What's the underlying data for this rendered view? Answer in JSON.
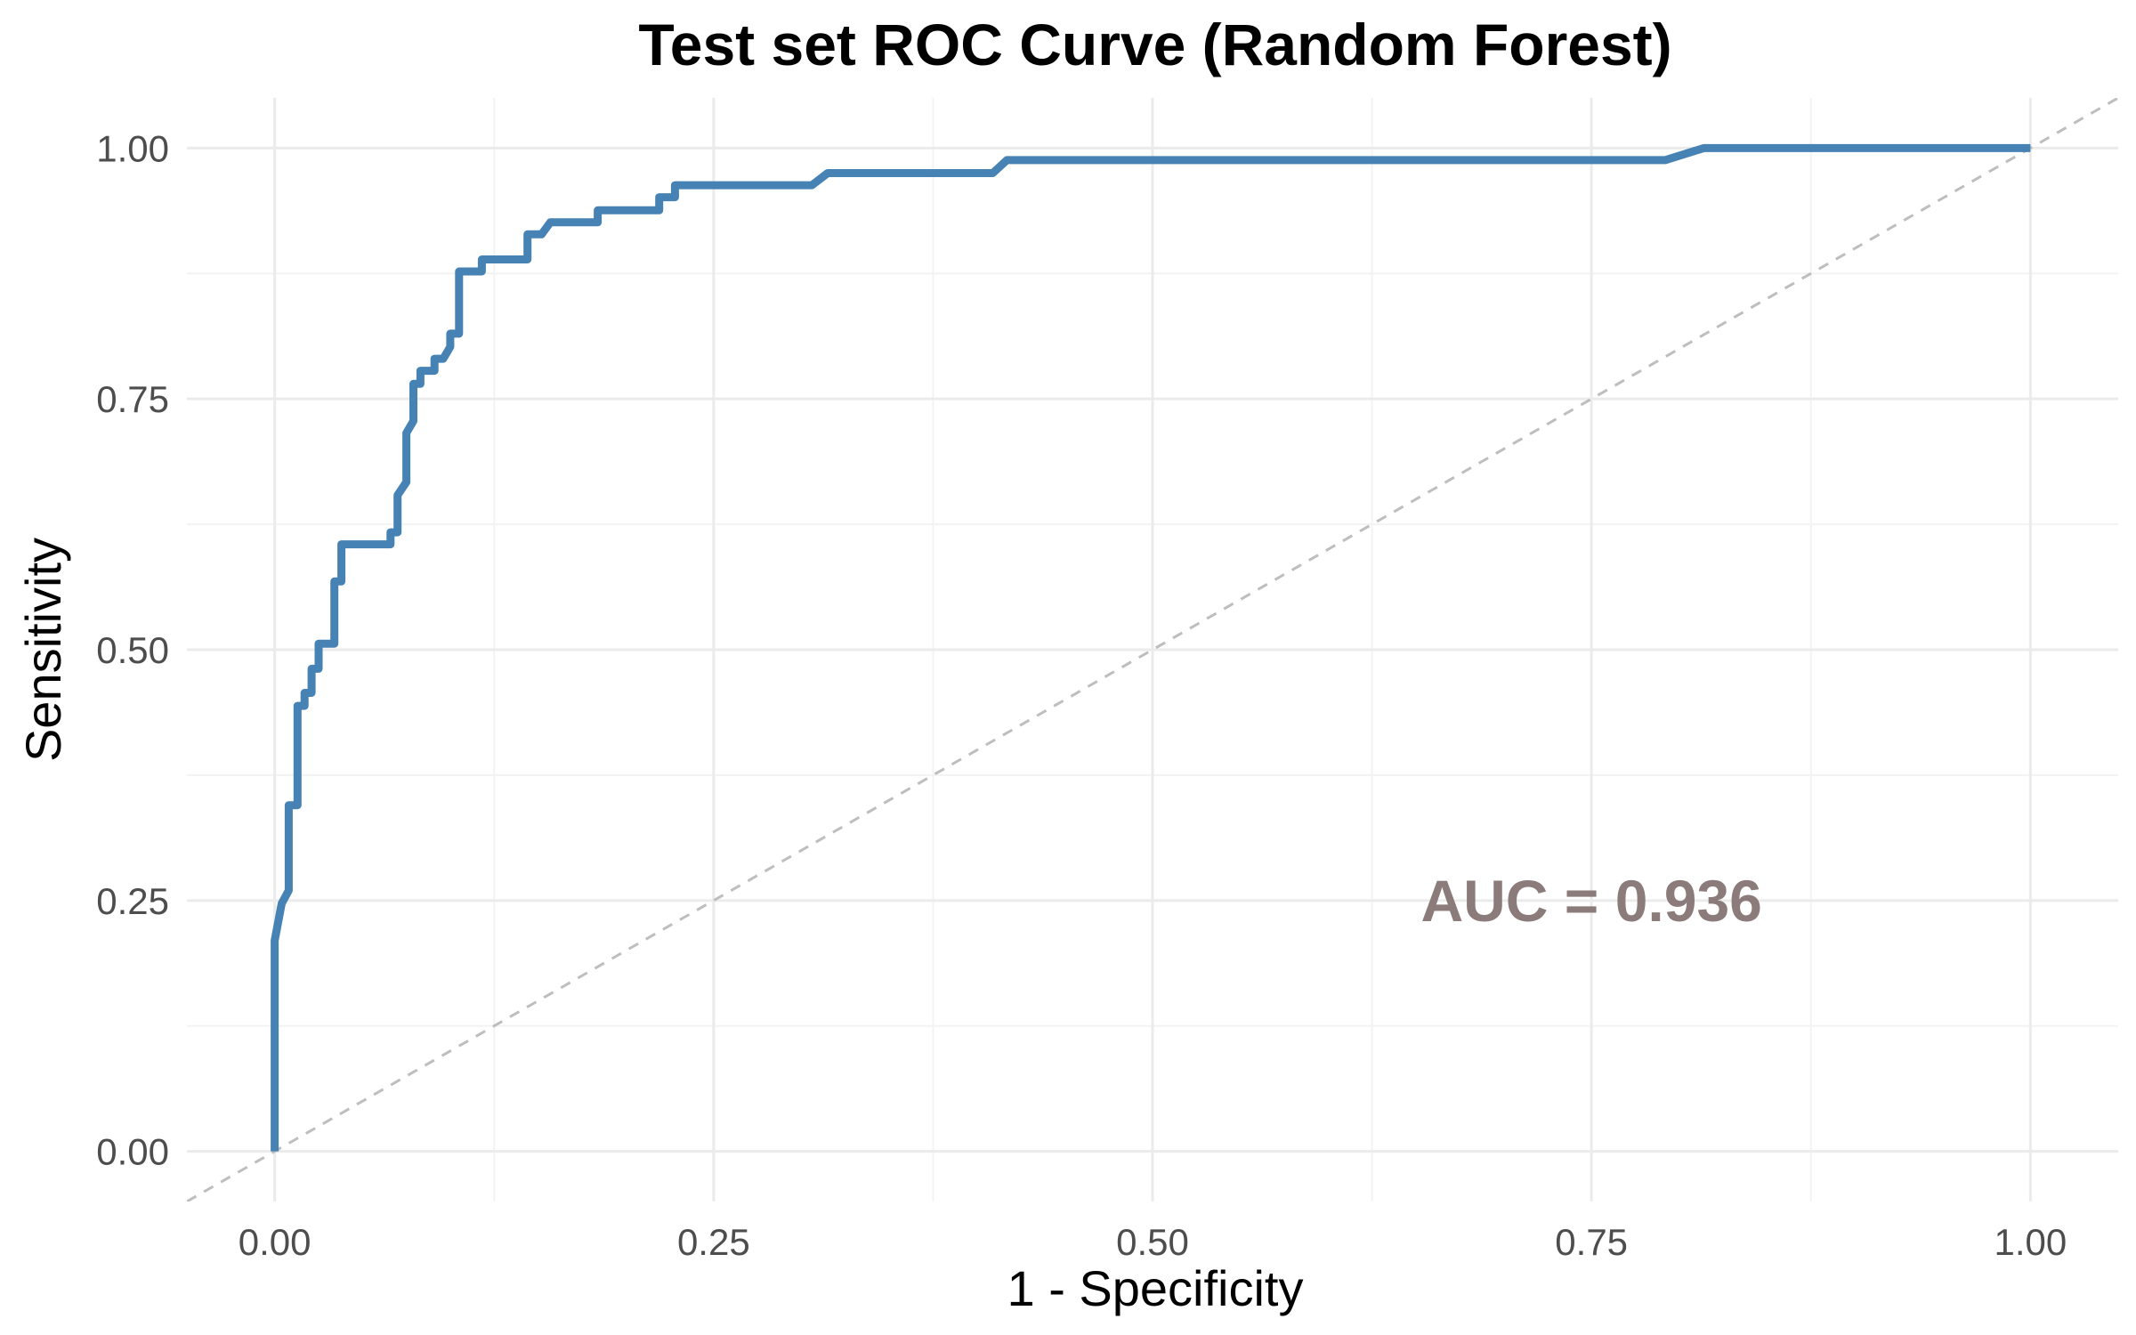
{
  "chart_data": {
    "type": "line",
    "title": "Test set ROC Curve (Random Forest)",
    "xlabel": "1 - Specificity",
    "ylabel": "Sensitivity",
    "xlim": [
      -0.05,
      1.05
    ],
    "ylim": [
      -0.05,
      1.05
    ],
    "x_ticks": [
      "0.00",
      "0.25",
      "0.50",
      "0.75",
      "1.00"
    ],
    "y_ticks": [
      "0.00",
      "0.25",
      "0.50",
      "0.75",
      "1.00"
    ],
    "grid": true,
    "legend": "none",
    "annotation": {
      "text": "AUC = 0.936",
      "x": 0.75,
      "y": 0.25
    },
    "reference_line": {
      "style": "dashed",
      "points": [
        [
          -0.05,
          -0.05
        ],
        [
          1.05,
          1.05
        ]
      ]
    },
    "series": [
      {
        "color": "#4682B4",
        "points": [
          [
            0.0,
            0.0
          ],
          [
            0.0,
            0.21
          ],
          [
            0.004,
            0.247
          ],
          [
            0.008,
            0.26
          ],
          [
            0.008,
            0.345
          ],
          [
            0.013,
            0.345
          ],
          [
            0.013,
            0.444
          ],
          [
            0.017,
            0.444
          ],
          [
            0.017,
            0.457
          ],
          [
            0.021,
            0.457
          ],
          [
            0.021,
            0.481
          ],
          [
            0.025,
            0.481
          ],
          [
            0.025,
            0.506
          ],
          [
            0.034,
            0.506
          ],
          [
            0.034,
            0.568
          ],
          [
            0.038,
            0.568
          ],
          [
            0.038,
            0.605
          ],
          [
            0.066,
            0.605
          ],
          [
            0.066,
            0.617
          ],
          [
            0.07,
            0.617
          ],
          [
            0.07,
            0.654
          ],
          [
            0.075,
            0.667
          ],
          [
            0.075,
            0.716
          ],
          [
            0.079,
            0.728
          ],
          [
            0.079,
            0.765
          ],
          [
            0.083,
            0.765
          ],
          [
            0.083,
            0.778
          ],
          [
            0.091,
            0.778
          ],
          [
            0.091,
            0.79
          ],
          [
            0.096,
            0.79
          ],
          [
            0.1,
            0.802
          ],
          [
            0.1,
            0.815
          ],
          [
            0.105,
            0.815
          ],
          [
            0.105,
            0.877
          ],
          [
            0.118,
            0.877
          ],
          [
            0.118,
            0.889
          ],
          [
            0.144,
            0.889
          ],
          [
            0.144,
            0.914
          ],
          [
            0.152,
            0.914
          ],
          [
            0.157,
            0.926
          ],
          [
            0.184,
            0.926
          ],
          [
            0.184,
            0.938
          ],
          [
            0.219,
            0.938
          ],
          [
            0.219,
            0.951
          ],
          [
            0.228,
            0.951
          ],
          [
            0.228,
            0.963
          ],
          [
            0.306,
            0.963
          ],
          [
            0.315,
            0.975
          ],
          [
            0.409,
            0.975
          ],
          [
            0.417,
            0.988
          ],
          [
            0.792,
            0.988
          ],
          [
            0.814,
            1.0
          ],
          [
            1.0,
            1.0
          ]
        ]
      }
    ]
  },
  "colors": {
    "curve": "#4682B4",
    "reference": "#BEBEBE",
    "annotation": "#8C7B7B",
    "grid_major": "#EBEBEB",
    "grid_minor": "#F3F3F3"
  }
}
